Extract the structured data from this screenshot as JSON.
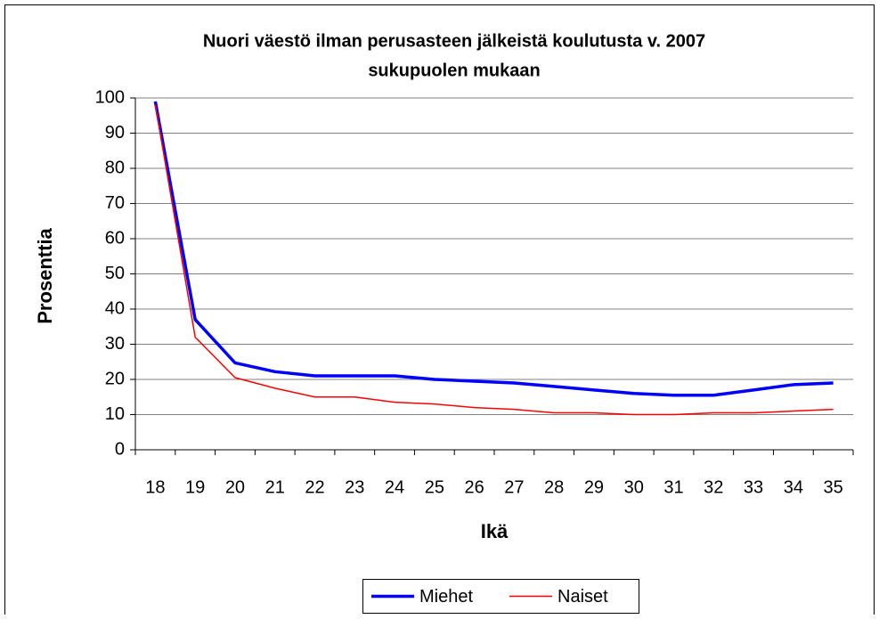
{
  "chart_data": {
    "type": "line",
    "title": [
      "Nuori väestö ilman perusasteen jälkeistä koulutusta v. 2007",
      "sukupuolen mukaan"
    ],
    "x_label": "Ikä",
    "y_label": "Prosenttia",
    "categories": [
      "18",
      "19",
      "20",
      "21",
      "22",
      "23",
      "24",
      "25",
      "26",
      "27",
      "28",
      "29",
      "30",
      "31",
      "32",
      "33",
      "34",
      "35"
    ],
    "series": [
      {
        "name": "Miehet",
        "color": "#0000ff",
        "values": [
          99,
          37,
          24.7,
          22.2,
          21,
          21,
          21,
          20,
          19.5,
          19,
          18,
          17,
          16,
          15.5,
          15.5,
          17,
          18.5,
          19
        ]
      },
      {
        "name": "Naiset",
        "color": "#ff0000",
        "values": [
          98,
          32,
          20.5,
          17.5,
          15,
          15,
          13.5,
          13,
          12,
          11.5,
          10.5,
          10.5,
          10,
          10,
          10.5,
          10.5,
          11,
          11.5
        ]
      }
    ],
    "ylim": [
      0,
      100
    ],
    "yticks": [
      0,
      10,
      20,
      30,
      40,
      50,
      60,
      70,
      80,
      90,
      100
    ],
    "grid": true,
    "legend": "bottom"
  }
}
